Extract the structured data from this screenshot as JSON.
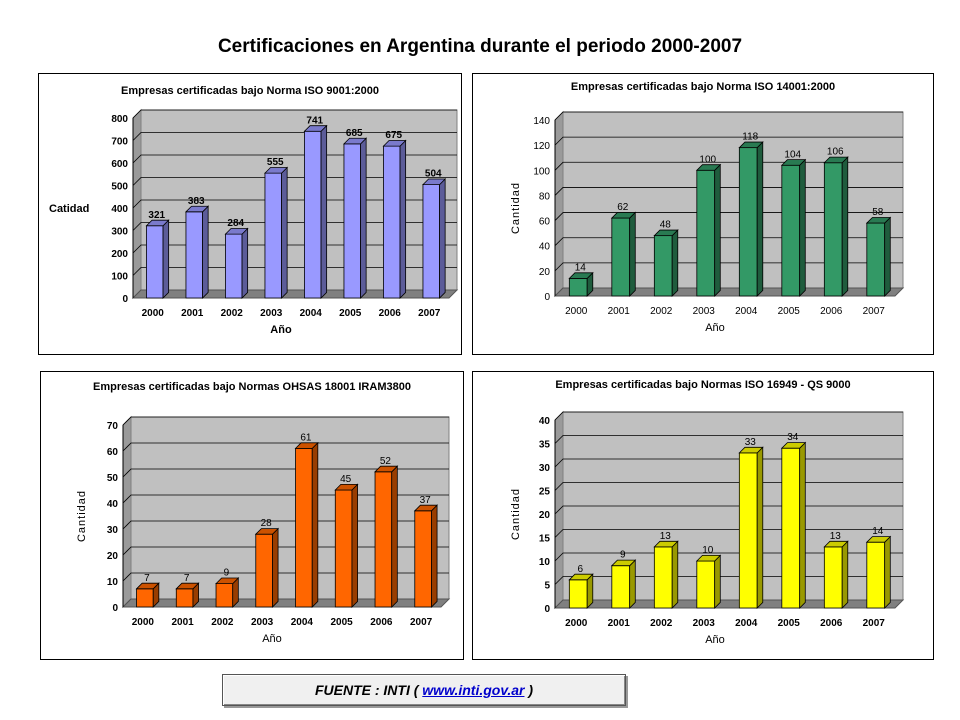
{
  "page": {
    "title": "Certificaciones en Argentina durante el periodo 2000-2007",
    "source": {
      "prefix": "FUENTE : INTI ( ",
      "link": "www.inti.gov.ar",
      "suffix": " )",
      "link_color": "#0000cc"
    }
  },
  "chart_data": [
    {
      "type": "bar",
      "title": "Empresas certificadas bajo Norma ISO 9001:2000",
      "xlabel": "Año",
      "ylabel": "Catidad",
      "categories": [
        "2000",
        "2001",
        "2002",
        "2003",
        "2004",
        "2005",
        "2006",
        "2007"
      ],
      "values": [
        321,
        383,
        284,
        555,
        741,
        685,
        675,
        504
      ],
      "ylim": [
        0,
        800
      ],
      "yticks": [
        "0",
        "100",
        "200",
        "300",
        "400",
        "500",
        "600",
        "700",
        "800"
      ],
      "bar_color": "#9999ff",
      "grid": true
    },
    {
      "type": "bar",
      "title": "Empresas certificadas bajo Norma ISO 14001:2000",
      "xlabel": "Año",
      "ylabel": "Cantidad",
      "categories": [
        "2000",
        "2001",
        "2002",
        "2003",
        "2004",
        "2005",
        "2006",
        "2007"
      ],
      "values": [
        14,
        62,
        48,
        100,
        118,
        104,
        106,
        58
      ],
      "ylim": [
        0,
        140
      ],
      "yticks": [
        "0",
        "20",
        "40",
        "60",
        "80",
        "100",
        "120",
        "140"
      ],
      "bar_color": "#339966",
      "grid": true
    },
    {
      "type": "bar",
      "title": "Empresas certificadas bajo Normas OHSAS 18001 IRAM3800",
      "xlabel": "Año",
      "ylabel": "Cantidad",
      "categories": [
        "2000",
        "2001",
        "2002",
        "2003",
        "2004",
        "2005",
        "2006",
        "2007"
      ],
      "values": [
        7,
        7,
        9,
        28,
        61,
        45,
        52,
        37
      ],
      "ylim": [
        0,
        70
      ],
      "yticks": [
        "0",
        "10",
        "20",
        "30",
        "40",
        "50",
        "60",
        "70"
      ],
      "bar_color": "#ff6600",
      "grid": true
    },
    {
      "type": "bar",
      "title": "Empresas certificadas bajo Normas ISO 16949 - QS 9000",
      "xlabel": "Año",
      "ylabel": "Cantidad",
      "categories": [
        "2000",
        "2001",
        "2002",
        "2003",
        "2004",
        "2005",
        "2006",
        "2007"
      ],
      "values": [
        6,
        9,
        13,
        10,
        33,
        34,
        13,
        14
      ],
      "ylim": [
        0,
        40
      ],
      "yticks": [
        "0",
        "5",
        "10",
        "15",
        "20",
        "25",
        "30",
        "35",
        "40"
      ],
      "bar_color": "#ffff00",
      "grid": true
    }
  ]
}
